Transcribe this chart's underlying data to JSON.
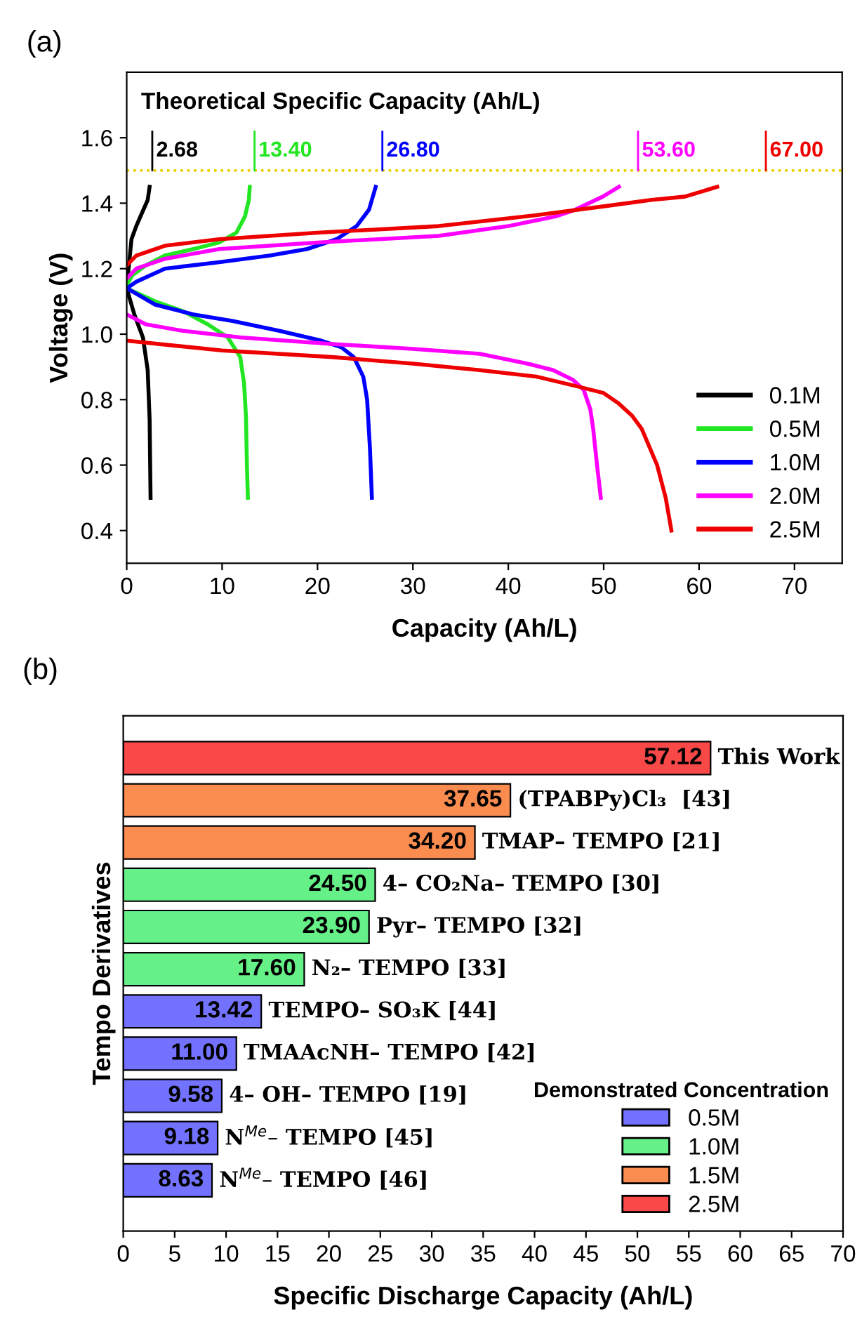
{
  "chart_data": [
    {
      "type": "line",
      "title": "(a)",
      "xlabel": "Capacity (Ah/L)",
      "ylabel": "Voltage (V)",
      "xlim": [
        0,
        75
      ],
      "xticks": [
        0,
        10,
        20,
        30,
        40,
        50,
        60,
        70
      ],
      "ylim": [
        0.3,
        1.8
      ],
      "yticks": [
        {
          "value": 0.4,
          "label": "0.4"
        },
        {
          "value": 0.6,
          "label": "0.6"
        },
        {
          "value": 0.8,
          "label": "0.8"
        },
        {
          "value": 1.0,
          "label": "1.0"
        },
        {
          "value": 1.2,
          "label": "1.2"
        },
        {
          "value": 1.4,
          "label": "1.4"
        },
        {
          "value": 1.6,
          "label": "1.6"
        }
      ],
      "legend": "bottom right",
      "grid": false,
      "ref_lines": [
        {
          "axis": "y",
          "value": 1.5,
          "color": "#e8d200",
          "line_style": "dotted"
        }
      ],
      "annotations": [
        "Theoretical Specific Capacity (Ah/L)",
        {
          "text": "2.68",
          "x": 2.68,
          "y": 1.5
        },
        {
          "text": "13.40",
          "x": 13.4,
          "y": 1.5
        },
        {
          "text": "26.80",
          "x": 26.8,
          "y": 1.5
        },
        {
          "text": "53.60",
          "x": 53.6,
          "y": 1.5
        },
        {
          "text": "67.00",
          "x": 67.0,
          "y": 1.5
        }
      ],
      "series": [
        {
          "name": "0.1M",
          "color": "#000000",
          "x": [
            0,
            0.8,
            1.7,
            2.2,
            2.4,
            2.5
          ],
          "values": [
            1.14,
            1.06,
            0.99,
            0.89,
            0.74,
            0.5
          ]
        },
        {
          "color": "#000000",
          "x": [
            0,
            0.2,
            0.5,
            1.0,
            1.6,
            2.2,
            2.4
          ],
          "values": [
            1.15,
            1.2,
            1.29,
            1.33,
            1.37,
            1.41,
            1.45
          ]
        },
        {
          "name": "0.5M",
          "color": "#22e622",
          "x": [
            0,
            3,
            5.9,
            8.5,
            10.6,
            11.9,
            12.3,
            12.5,
            12.6,
            12.7
          ],
          "values": [
            1.14,
            1.1,
            1.07,
            1.03,
            0.99,
            0.93,
            0.85,
            0.75,
            0.6,
            0.5
          ]
        },
        {
          "color": "#22e622",
          "x": [
            0,
            0.6,
            2,
            4,
            7,
            9.7,
            11.5,
            12.4,
            12.8,
            12.9
          ],
          "values": [
            1.15,
            1.18,
            1.21,
            1.24,
            1.26,
            1.28,
            1.31,
            1.36,
            1.41,
            1.45
          ]
        },
        {
          "name": "1.0M",
          "color": "#0000ff",
          "x": [
            0,
            3,
            7,
            11.1,
            16,
            20.4,
            22.5,
            23.8,
            24.8,
            25.2,
            25.5,
            25.7
          ],
          "values": [
            1.14,
            1.09,
            1.06,
            1.04,
            1.01,
            0.98,
            0.96,
            0.93,
            0.87,
            0.8,
            0.65,
            0.5
          ]
        },
        {
          "color": "#0000ff",
          "x": [
            0,
            1,
            4,
            9.7,
            15,
            18.9,
            22,
            24.1,
            25.4,
            26.1
          ],
          "values": [
            1.14,
            1.16,
            1.2,
            1.22,
            1.24,
            1.26,
            1.29,
            1.33,
            1.38,
            1.45
          ]
        },
        {
          "name": "2.0M",
          "color": "#ff00ff",
          "x": [
            0,
            2,
            5.9,
            12,
            21.5,
            30,
            37,
            42,
            44.7,
            46.8,
            47.9,
            48.6,
            48.9,
            49.3,
            49.7
          ],
          "values": [
            1.06,
            1.03,
            1.01,
            0.99,
            0.97,
            0.955,
            0.94,
            0.91,
            0.89,
            0.86,
            0.83,
            0.77,
            0.71,
            0.6,
            0.5
          ]
        },
        {
          "color": "#ff00ff",
          "x": [
            0,
            1,
            4,
            9.7,
            20,
            32.7,
            40,
            45,
            47,
            49.9,
            51.6
          ],
          "values": [
            1.17,
            1.2,
            1.23,
            1.26,
            1.28,
            1.3,
            1.33,
            1.36,
            1.38,
            1.42,
            1.45
          ]
        },
        {
          "name": "2.5M",
          "color": "#ee0000",
          "x": [
            0,
            10,
            21.5,
            30,
            37,
            43,
            47.3,
            50,
            51.5,
            53,
            54,
            55.6,
            56.5,
            57.1
          ],
          "values": [
            0.98,
            0.95,
            0.93,
            0.91,
            0.89,
            0.87,
            0.84,
            0.82,
            0.79,
            0.75,
            0.71,
            0.6,
            0.5,
            0.4
          ]
        },
        {
          "color": "#ee0000",
          "x": [
            0,
            1,
            4,
            9.7,
            20,
            32.7,
            42,
            49.9,
            55,
            58.5,
            61.9
          ],
          "values": [
            1.21,
            1.24,
            1.27,
            1.29,
            1.31,
            1.33,
            1.36,
            1.39,
            1.41,
            1.42,
            1.45
          ]
        }
      ]
    },
    {
      "type": "bar",
      "orientation": "horizontal",
      "title": "(b)",
      "xlabel": "Specific Discharge Capacity (Ah/L)",
      "ylabel": "Tempo Derivatives",
      "legend_title": "Demonstrated Concentration",
      "legend": "bottom right",
      "tick_labels": "x",
      "grid": false,
      "xlim": [
        0,
        70
      ],
      "xticks": [
        0,
        5,
        10,
        15,
        20,
        25,
        30,
        35,
        40,
        45,
        50,
        55,
        60,
        65,
        70
      ],
      "categories": [
        "This Work",
        "(TPABPy)Cl₃  [43]",
        "TMAP– TEMPO [21]",
        "4– CO₂Na– TEMPO [30]",
        "Pyr– TEMPO [32]",
        "N₂– TEMPO [33]",
        "TEMPO– SO₃K [44]",
        "TMAAcNH– TEMPO [42]",
        "4– OH– TEMPO [19]",
        "N$^{Me}$– TEMPO [45]",
        "N$^{Me}$– TEMPO [46]"
      ],
      "series": [
        {
          "name": "0.5M",
          "color": "#7272ff",
          "values": [
            null,
            null,
            null,
            null,
            null,
            null,
            13.42,
            11.0,
            9.58,
            9.18,
            8.63
          ],
          "value_labels": [
            null,
            null,
            null,
            null,
            null,
            null,
            "13.42",
            "11.00",
            "9.58",
            "9.18",
            "8.63"
          ]
        },
        {
          "name": "1.0M",
          "color": "#66f088",
          "values": [
            null,
            null,
            null,
            24.5,
            23.9,
            17.6,
            null,
            null,
            null,
            null,
            null
          ],
          "value_labels": [
            null,
            null,
            null,
            "24.50",
            "23.90",
            "17.60",
            null,
            null,
            null,
            null,
            null
          ]
        },
        {
          "name": "1.5M",
          "color": "#fb8c50",
          "values": [
            null,
            37.65,
            34.2,
            null,
            null,
            null,
            null,
            null,
            null,
            null,
            null
          ],
          "value_labels": [
            null,
            "37.65",
            "34.20",
            null,
            null,
            null,
            null,
            null,
            null,
            null,
            null
          ]
        },
        {
          "name": "2.5M",
          "color": "#f84848",
          "values": [
            57.12,
            null,
            null,
            null,
            null,
            null,
            null,
            null,
            null,
            null,
            null
          ],
          "value_labels": [
            "57.12",
            null,
            null,
            null,
            null,
            null,
            null,
            null,
            null,
            null,
            null
          ]
        }
      ]
    }
  ]
}
